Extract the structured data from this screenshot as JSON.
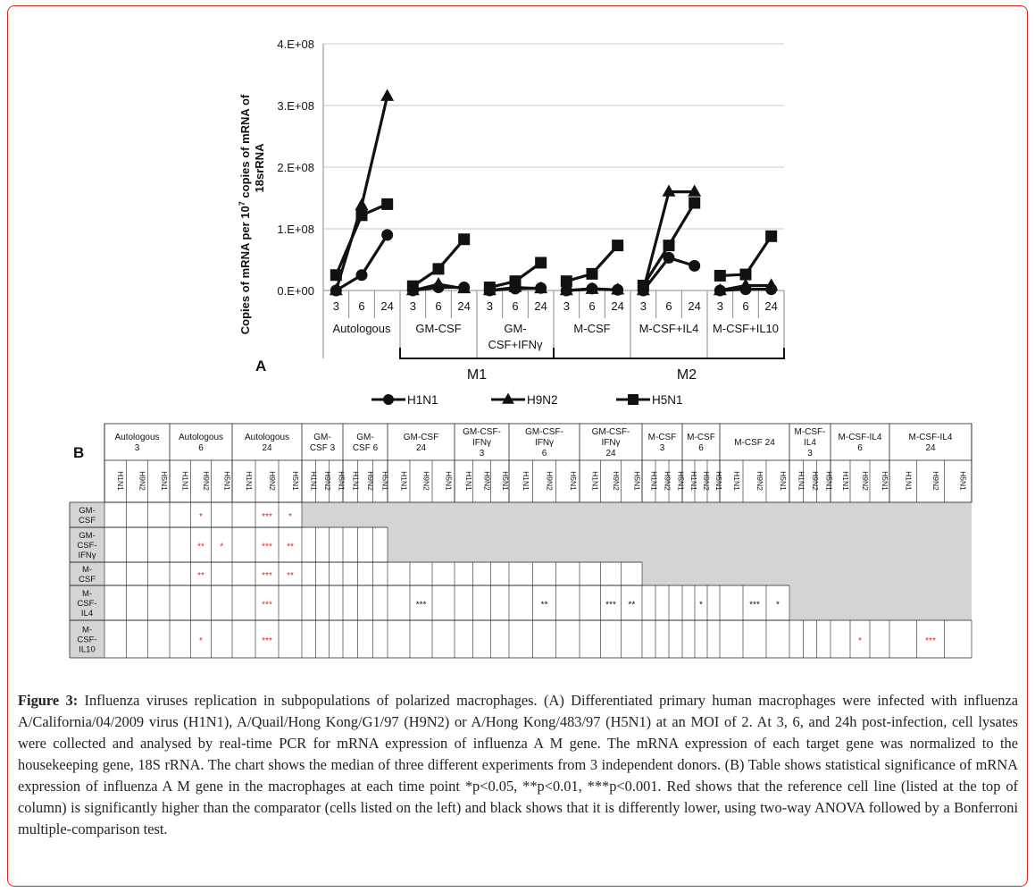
{
  "figure": {
    "panel_a_label": "A",
    "panel_b_label": "B",
    "caption_label": "Figure 3:",
    "caption_text": " Influenza viruses replication in subpopulations of polarized macrophages. (A) Differentiated primary human macrophages were infected with influenza A/California/04/2009 virus (H1N1), A/Quail/Hong Kong/G1/97 (H9N2) or A/Hong Kong/483/97 (H5N1) at an MOI of 2. At 3, 6, and 24h post-infection, cell lysates were collected and analysed by real-time PCR for mRNA expression of influenza A M gene. The mRNA expression of each target gene was normalized to the housekeeping gene, 18S rRNA. The chart shows the median of three different experiments from 3 independent donors. (B) Table shows statistical significance of mRNA expression of influenza A M gene in the macrophages at each time point *p<0.05, **p<0.01, ***p<0.001. Red shows that the reference cell line (listed at the top of column) is significantly higher than the comparator (cells listed on the left) and black shows that it is differently lower, using two-way ANOVA followed by a Bonferroni multiple-comparison test."
  },
  "chart_data": {
    "type": "line",
    "ylabel_line1": "Copies of mRNA per 10",
    "ylabel_sup": "7",
    "ylabel_line1_end": " copies of mRNA of",
    "ylabel_line2": "18srRNA",
    "yticks": [
      "0.E+00",
      "1.E+08",
      "2.E+08",
      "3.E+08",
      "4.E+08"
    ],
    "ylim": [
      0,
      400000000
    ],
    "time_points": [
      "3",
      "6",
      "24"
    ],
    "groups": [
      "Autologous",
      "GM-CSF",
      "GM-CSF+IFNγ",
      "M-CSF",
      "M-CSF+IL4",
      "M-CSF+IL10"
    ],
    "group_label_lines": [
      [
        "Autologous"
      ],
      [
        "GM-CSF"
      ],
      [
        "GM-",
        "CSF+IFNγ"
      ],
      [
        "M-CSF"
      ],
      [
        "M-CSF+IL4"
      ],
      [
        "M-CSF+IL10"
      ]
    ],
    "brackets": [
      {
        "label": "M1",
        "from": 1,
        "to": 2
      },
      {
        "label": "M2",
        "to_group": 5
      }
    ],
    "series": [
      {
        "name": "H1N1",
        "marker": "circle",
        "values": [
          [
            0,
            25000000,
            90000000
          ],
          [
            0,
            5000000,
            5000000
          ],
          [
            0,
            3000000,
            4000000
          ],
          [
            0,
            3000000,
            1000000
          ],
          [
            0,
            53000000,
            40000000
          ],
          [
            0,
            2000000,
            2000000
          ]
        ]
      },
      {
        "name": "H9N2",
        "marker": "triangle",
        "values": [
          [
            0,
            138000000,
            315000000
          ],
          [
            0,
            10000000,
            3000000
          ],
          [
            0,
            5000000,
            3000000
          ],
          [
            0,
            2000000,
            1000000
          ],
          [
            0,
            160000000,
            160000000
          ],
          [
            0,
            8000000,
            8000000
          ]
        ]
      },
      {
        "name": "H5N1",
        "marker": "square",
        "values": [
          [
            25000000,
            122000000,
            140000000
          ],
          [
            7000000,
            35000000,
            83000000
          ],
          [
            5000000,
            15000000,
            45000000
          ],
          [
            15000000,
            27000000,
            73000000
          ],
          [
            8000000,
            73000000,
            142000000
          ],
          [
            24000000,
            26000000,
            88000000
          ]
        ]
      }
    ],
    "legend_position": "bottom"
  },
  "table": {
    "column_groups": [
      [
        "Autologous",
        "3"
      ],
      [
        "Autologous",
        "6"
      ],
      [
        "Autologous",
        "24"
      ],
      [
        "GM-",
        "CSF 3"
      ],
      [
        "GM-",
        "CSF 6"
      ],
      [
        "GM-CSF",
        "24"
      ],
      [
        "GM-CSF-",
        "IFNγ",
        "3"
      ],
      [
        "GM-CSF-",
        "IFNγ",
        "6"
      ],
      [
        "GM-CSF-",
        "IFNγ",
        "24"
      ],
      [
        "M-CSF",
        "3"
      ],
      [
        "M-CSF",
        "6"
      ],
      [
        "M-CSF 24"
      ],
      [
        "M-CSF-",
        "IL4",
        "3"
      ],
      [
        "M-CSF-IL4",
        "6"
      ],
      [
        "M-CSF-IL4",
        "24"
      ]
    ],
    "strains": [
      "H1N1",
      "H9N2",
      "H5N1"
    ],
    "rows": [
      {
        "label": [
          "GM-",
          "CSF"
        ],
        "cells": {
          "4": {
            "t": "*",
            "c": "red"
          },
          "7": {
            "t": "***",
            "c": "red"
          },
          "8": {
            "t": "*",
            "c": "red"
          }
        }
      },
      {
        "label": [
          "GM-",
          "CSF-",
          "IFNγ"
        ],
        "cells": {
          "4": {
            "t": "**",
            "c": "red"
          },
          "5": {
            "t": "*",
            "c": "red"
          },
          "7": {
            "t": "***",
            "c": "red"
          },
          "8": {
            "t": "**",
            "c": "red"
          }
        }
      },
      {
        "label": [
          "M-",
          "CSF"
        ],
        "cells": {
          "4": {
            "t": "**",
            "c": "red"
          },
          "7": {
            "t": "***",
            "c": "red"
          },
          "8": {
            "t": "**",
            "c": "red"
          }
        }
      },
      {
        "label": [
          "M-",
          "CSF-",
          "IL4"
        ],
        "cells": {
          "7": {
            "t": "***",
            "c": "red"
          },
          "16": {
            "t": "***",
            "c": "black"
          },
          "22": {
            "t": "**",
            "c": "black"
          },
          "25": {
            "t": "***",
            "c": "black"
          },
          "26": {
            "t": "**",
            "c": "black"
          },
          "31": {
            "t": "*",
            "c": "black"
          },
          "34": {
            "t": "***",
            "c": "black"
          },
          "35": {
            "t": "*",
            "c": "black"
          }
        }
      },
      {
        "label": [
          "M-",
          "CSF-",
          "IL10"
        ],
        "cells": {
          "4": {
            "t": "*",
            "c": "red"
          },
          "7": {
            "t": "***",
            "c": "red"
          },
          "40": {
            "t": "*",
            "c": "red"
          },
          "43": {
            "t": "***",
            "c": "red"
          }
        }
      }
    ],
    "colors": {
      "red": "#e8231b",
      "black": "#111111",
      "grey": "#d4d4d4",
      "border": "#d9251d"
    }
  }
}
